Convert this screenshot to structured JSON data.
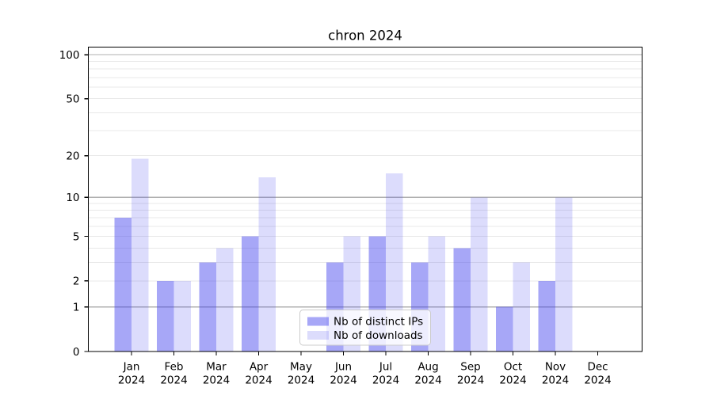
{
  "chart_data": {
    "type": "bar",
    "title": "chron 2024",
    "categories": [
      "Jan",
      "Feb",
      "Mar",
      "Apr",
      "May",
      "Jun",
      "Jul",
      "Aug",
      "Sep",
      "Oct",
      "Nov",
      "Dec"
    ],
    "category_year": "2024",
    "series": [
      {
        "name": "Nb of distinct IPs",
        "values": [
          7,
          2,
          3,
          5,
          0,
          3,
          5,
          3,
          4,
          1,
          2,
          0
        ],
        "color_base": "#4444ee",
        "opacity": 0.47,
        "rendered_color": "#a7a7f7"
      },
      {
        "name": "Nb of downloads",
        "values": [
          19,
          2,
          4,
          14,
          0,
          5,
          15,
          5,
          10,
          3,
          10,
          0
        ],
        "color_base": "#4444ee",
        "opacity": 0.19,
        "rendered_color": "#dcdcfc"
      }
    ],
    "y_axis": {
      "scale": "log1p",
      "tick_values": [
        0,
        1,
        2,
        5,
        10,
        20,
        50,
        100
      ],
      "tick_labels": [
        "0",
        "1",
        "2",
        "5",
        "10",
        "20",
        "50",
        "100"
      ],
      "range_top": 112
    },
    "x_axis": {
      "label_lines": 2
    },
    "grid": {
      "major_values": [
        1,
        10,
        100
      ],
      "minor_values": [
        2,
        3,
        4,
        5,
        6,
        7,
        8,
        9,
        20,
        30,
        40,
        50,
        60,
        70,
        80,
        90
      ],
      "major_color": "#b0b0b0",
      "minor_color": "#e8e8e8"
    },
    "legend": {
      "position": "lower center",
      "entries": [
        "Nb of distinct IPs",
        "Nb of downloads"
      ]
    },
    "colors": {
      "spine": "#000000",
      "background": "#ffffff",
      "legend_border": "#cccccc"
    }
  }
}
